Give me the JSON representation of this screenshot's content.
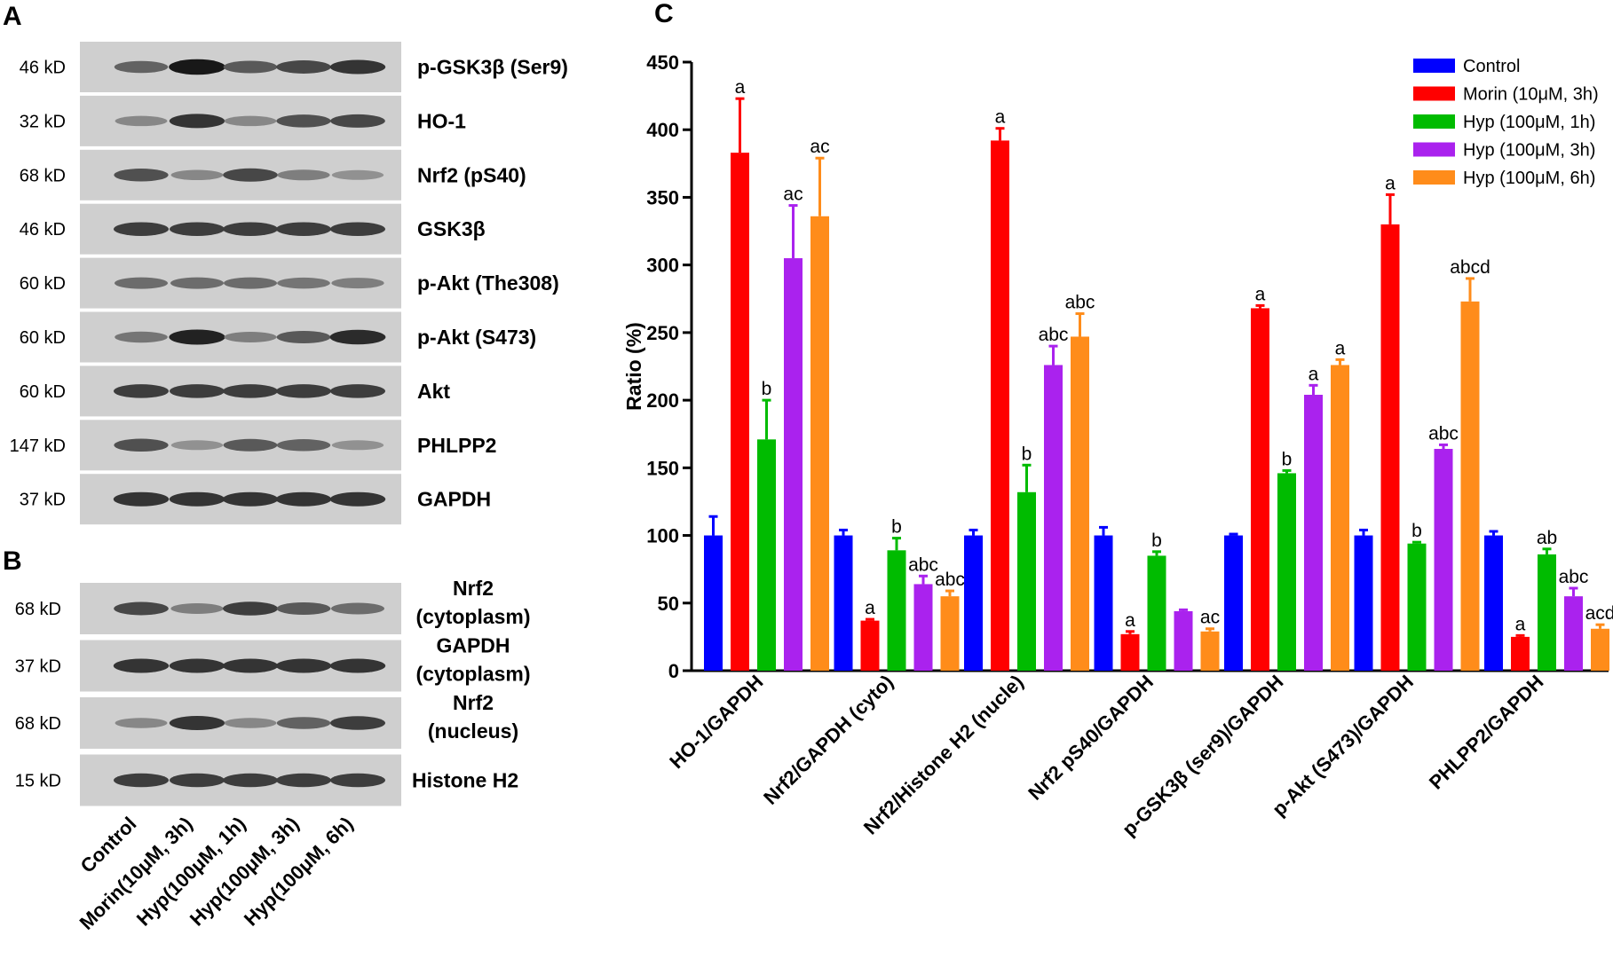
{
  "panels": {
    "a": "A",
    "b": "B",
    "c": "C"
  },
  "blot_a": {
    "rows": [
      {
        "kd": "46 kD",
        "protein": "p-GSK3β (Ser9)",
        "intensity": [
          0.55,
          0.95,
          0.6,
          0.7,
          0.8
        ]
      },
      {
        "kd": "32 kD",
        "protein": "HO-1",
        "intensity": [
          0.35,
          0.8,
          0.35,
          0.65,
          0.7
        ]
      },
      {
        "kd": "68 kD",
        "protein": "Nrf2 (pS40)",
        "intensity": [
          0.65,
          0.35,
          0.7,
          0.4,
          0.3
        ]
      },
      {
        "kd": "46 kD",
        "protein": "GSK3β",
        "intensity": [
          0.75,
          0.75,
          0.75,
          0.75,
          0.75
        ]
      },
      {
        "kd": "60 kD",
        "protein": "p-Akt (The308)",
        "intensity": [
          0.5,
          0.5,
          0.5,
          0.45,
          0.4
        ]
      },
      {
        "kd": "60 kD",
        "protein": "p-Akt (S473)",
        "intensity": [
          0.45,
          0.9,
          0.4,
          0.6,
          0.85
        ]
      },
      {
        "kd": "60 kD",
        "protein": "Akt",
        "intensity": [
          0.75,
          0.75,
          0.75,
          0.75,
          0.75
        ]
      },
      {
        "kd": "147 kD",
        "protein": "PHLPP2",
        "intensity": [
          0.65,
          0.3,
          0.6,
          0.55,
          0.3
        ]
      },
      {
        "kd": "37 kD",
        "protein": "GAPDH",
        "intensity": [
          0.8,
          0.8,
          0.8,
          0.8,
          0.8
        ]
      }
    ]
  },
  "blot_b": {
    "rows": [
      {
        "kd": "68 kD",
        "protein_lines": [
          "Nrf2",
          "(cytoplasm)"
        ],
        "intensity": [
          0.7,
          0.4,
          0.75,
          0.6,
          0.5
        ]
      },
      {
        "kd": "37 kD",
        "protein_lines": [
          "GAPDH",
          "(cytoplasm)"
        ],
        "intensity": [
          0.8,
          0.8,
          0.8,
          0.8,
          0.8
        ]
      },
      {
        "kd": "68 kD",
        "protein_lines": [
          "Nrf2",
          "(nucleus)"
        ],
        "intensity": [
          0.35,
          0.8,
          0.35,
          0.55,
          0.75
        ]
      },
      {
        "kd": "15 kD",
        "protein_lines": [
          "Histone H2"
        ],
        "intensity": [
          0.75,
          0.75,
          0.75,
          0.75,
          0.75
        ]
      }
    ],
    "lanes": [
      "Control",
      "Morin(10μM, 3h)",
      "Hyp(100μM, 1h)",
      "Hyp(100μM, 3h)",
      "Hyp(100μM, 6h)"
    ]
  },
  "chart_data": {
    "type": "bar",
    "title": "",
    "xlabel": "",
    "ylabel": "Ratio (%)",
    "ylim": [
      0,
      450
    ],
    "yticks": [
      0,
      50,
      100,
      150,
      200,
      250,
      300,
      350,
      400,
      450
    ],
    "grid": false,
    "legend_position": "top-right",
    "categories": [
      "HO-1/GAPDH",
      "Nrf2/GAPDH (cyto)",
      "Nrf2/Histone H2 (nucle)",
      "Nrf2 pS40/GAPDH",
      "p-GSK3β (ser9)/GAPDH",
      "p-Akt (S473)/GAPDH",
      "PHLPP2/GAPDH"
    ],
    "series": [
      {
        "name": "Control",
        "color": "#0000ff",
        "values": [
          100,
          100,
          100,
          100,
          100,
          100,
          100
        ],
        "errors": [
          14,
          4,
          4,
          6,
          1,
          4,
          3
        ],
        "labels": [
          "",
          "",
          "",
          "",
          "",
          "",
          ""
        ]
      },
      {
        "name": "Morin (10μM, 3h)",
        "color": "#ff0000",
        "values": [
          383,
          37,
          392,
          27,
          268,
          330,
          25
        ],
        "errors": [
          40,
          1,
          9,
          2,
          2,
          22,
          1
        ],
        "labels": [
          "a",
          "a",
          "a",
          "a",
          "a",
          "a",
          "a"
        ]
      },
      {
        "name": "Hyp (100μM, 1h)",
        "color": "#00bb00",
        "values": [
          171,
          89,
          132,
          85,
          146,
          94,
          86
        ],
        "errors": [
          29,
          9,
          20,
          3,
          2,
          1,
          4
        ],
        "labels": [
          "b",
          "b",
          "b",
          "b",
          "b",
          "b",
          "ab"
        ]
      },
      {
        "name": "Hyp (100μM, 3h)",
        "color": "#aa22ee",
        "values": [
          305,
          64,
          226,
          44,
          204,
          164,
          55
        ],
        "errors": [
          39,
          6,
          14,
          1,
          7,
          3,
          6
        ],
        "labels": [
          "ac",
          "abc",
          "abc",
          "",
          "a",
          "abc",
          "abc"
        ]
      },
      {
        "name": "Hyp (100μM, 6h)",
        "color": "#ff8c1a",
        "values": [
          336,
          55,
          247,
          29,
          226,
          273,
          31
        ],
        "errors": [
          43,
          4,
          17,
          2,
          4,
          17,
          3
        ],
        "labels": [
          "ac",
          "abc",
          "abc",
          "ac",
          "a",
          "abcd",
          "acd"
        ]
      }
    ]
  }
}
